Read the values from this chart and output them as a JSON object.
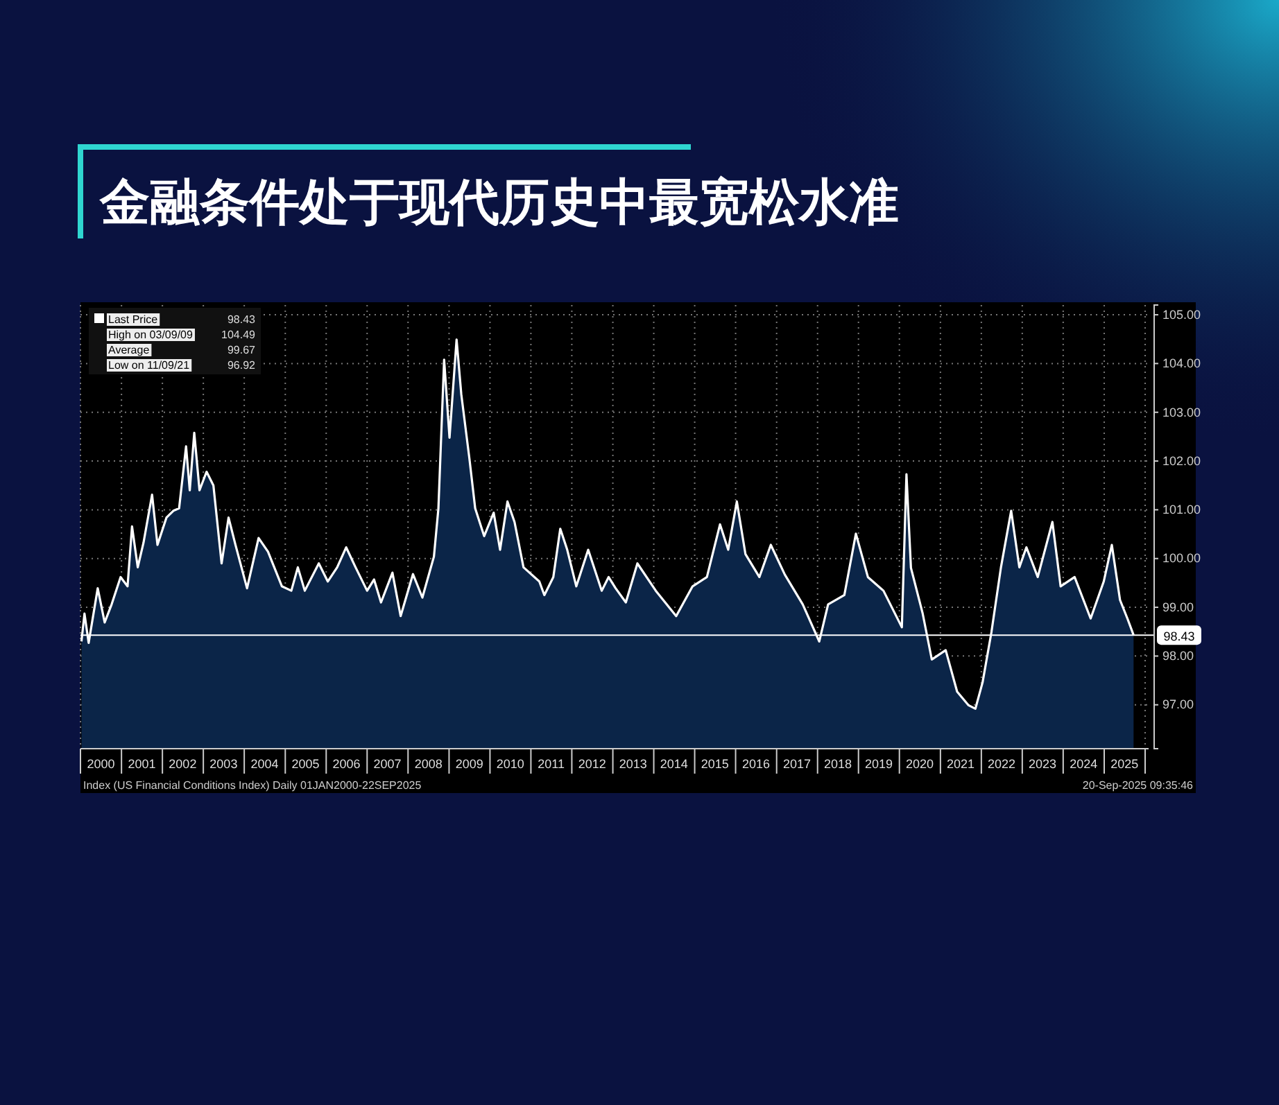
{
  "chart_data": {
    "type": "area",
    "title": "金融条件处于现代历史中最宽松水准",
    "series": [
      {
        "name": "Last Price",
        "color": "#ffffff",
        "x": [
          "2000-01-10",
          "2000-02-06",
          "2000-03-14",
          "2000-06-03",
          "2000-08-04",
          "2000-10-05",
          "2000-12-24",
          "2001-02-24",
          "2001-04-05",
          "2001-05-26",
          "2001-07-16",
          "2001-10-01",
          "2001-11-18",
          "2002-02-06",
          "2002-04-09",
          "2002-05-30",
          "2002-07-31",
          "2002-09-02",
          "2002-10-12",
          "2002-11-28",
          "2003-01-30",
          "2003-04-01",
          "2003-06-13",
          "2003-08-14",
          "2003-10-15",
          "2004-01-26",
          "2004-05-08",
          "2004-07-31",
          "2004-12-02",
          "2005-02-24",
          "2005-04-23",
          "2005-06-24",
          "2005-10-27",
          "2006-01-15",
          "2006-04-09",
          "2006-06-28",
          "2006-09-20",
          "2007-01-01",
          "2007-03-04",
          "2007-05-05",
          "2007-08-15",
          "2007-10-27",
          "2008-02-14",
          "2008-05-08",
          "2008-08-19",
          "2008-09-28",
          "2008-11-18",
          "2009-01-05",
          "2009-03-09",
          "2009-04-20",
          "2009-07-01",
          "2009-08-22",
          "2009-11-10",
          "2010-02-03",
          "2010-04-01",
          "2010-06-06",
          "2010-08-08",
          "2010-10-27",
          "2011-03-17",
          "2011-05-01",
          "2011-07-20",
          "2011-09-20",
          "2011-11-21",
          "2012-02-10",
          "2012-05-26",
          "2012-09-24",
          "2012-11-24",
          "2013-01-26",
          "2013-04-27",
          "2013-08-08",
          "2014-01-19",
          "2014-07-20",
          "2014-12-13",
          "2015-04-20",
          "2015-08-15",
          "2015-10-27",
          "2016-01-12",
          "2016-03-29",
          "2016-07-31",
          "2016-11-10",
          "2017-03-15",
          "2017-08-22",
          "2018-01-16",
          "2018-04-05",
          "2018-08-28",
          "2018-12-09",
          "2019-03-26",
          "2019-08-12",
          "2020-01-23",
          "2020-03-04",
          "2020-04-13",
          "2020-07-27",
          "2020-10-16",
          "2021-02-17",
          "2021-05-30",
          "2021-09-09",
          "2021-11-09",
          "2022-01-12",
          "2022-04-01",
          "2022-06-25",
          "2022-09-24",
          "2022-12-06",
          "2023-02-07",
          "2023-05-19",
          "2023-09-27",
          "2023-12-09",
          "2024-04-12",
          "2024-09-02",
          "2024-12-28",
          "2025-03-10",
          "2025-05-22",
          "2025-07-27",
          "2025-09-20"
        ],
        "values": [
          98.3,
          98.87,
          98.27,
          99.39,
          98.69,
          99.06,
          99.62,
          99.43,
          100.66,
          99.82,
          100.32,
          101.31,
          100.28,
          100.84,
          100.98,
          101.03,
          102.3,
          101.4,
          102.58,
          101.4,
          101.78,
          101.5,
          99.9,
          100.84,
          100.28,
          99.39,
          100.42,
          100.14,
          99.43,
          99.34,
          99.82,
          99.34,
          99.9,
          99.53,
          99.82,
          100.23,
          99.82,
          99.34,
          99.57,
          99.1,
          99.71,
          98.82,
          99.68,
          99.2,
          100.04,
          101.03,
          104.08,
          102.48,
          104.49,
          103.37,
          102.06,
          101.03,
          100.46,
          100.94,
          100.18,
          101.17,
          100.75,
          99.82,
          99.53,
          99.25,
          99.62,
          100.61,
          100.18,
          99.43,
          100.18,
          99.34,
          99.62,
          99.39,
          99.1,
          99.9,
          99.34,
          98.82,
          99.43,
          99.62,
          100.7,
          100.18,
          101.17,
          100.09,
          99.62,
          100.28,
          99.67,
          99.06,
          98.3,
          99.06,
          99.25,
          100.51,
          99.62,
          99.34,
          98.59,
          101.73,
          99.81,
          98.87,
          97.93,
          98.12,
          97.27,
          96.99,
          96.92,
          97.46,
          98.49,
          99.82,
          100.98,
          99.82,
          100.23,
          99.62,
          100.75,
          99.43,
          99.62,
          98.77,
          99.53,
          100.28,
          99.15,
          98.77,
          98.43
        ]
      }
    ],
    "xlim": [
      "2000-01-01",
      "2026-02-01"
    ],
    "xticks": [
      {
        "value": "2000-01-01",
        "label": null
      },
      {
        "value": "2000-07-01",
        "label": "2000"
      },
      {
        "value": "2001-01-01",
        "label": null
      },
      {
        "value": "2001-07-01",
        "label": "2001"
      },
      {
        "value": "2002-01-01",
        "label": null
      },
      {
        "value": "2002-07-01",
        "label": "2002"
      },
      {
        "value": "2003-01-01",
        "label": null
      },
      {
        "value": "2003-07-01",
        "label": "2003"
      },
      {
        "value": "2004-01-01",
        "label": null
      },
      {
        "value": "2004-07-01",
        "label": "2004"
      },
      {
        "value": "2005-01-01",
        "label": null
      },
      {
        "value": "2005-07-01",
        "label": "2005"
      },
      {
        "value": "2006-01-01",
        "label": null
      },
      {
        "value": "2006-07-01",
        "label": "2006"
      },
      {
        "value": "2007-01-01",
        "label": null
      },
      {
        "value": "2007-07-01",
        "label": "2007"
      },
      {
        "value": "2008-01-01",
        "label": null
      },
      {
        "value": "2008-07-01",
        "label": "2008"
      },
      {
        "value": "2009-01-01",
        "label": null
      },
      {
        "value": "2009-07-01",
        "label": "2009"
      },
      {
        "value": "2010-01-01",
        "label": null
      },
      {
        "value": "2010-07-01",
        "label": "2010"
      },
      {
        "value": "2011-01-01",
        "label": null
      },
      {
        "value": "2011-07-01",
        "label": "2011"
      },
      {
        "value": "2012-01-01",
        "label": null
      },
      {
        "value": "2012-07-01",
        "label": "2012"
      },
      {
        "value": "2013-01-01",
        "label": null
      },
      {
        "value": "2013-07-01",
        "label": "2013"
      },
      {
        "value": "2014-01-01",
        "label": null
      },
      {
        "value": "2014-07-01",
        "label": "2014"
      },
      {
        "value": "2015-01-01",
        "label": null
      },
      {
        "value": "2015-07-01",
        "label": "2015"
      },
      {
        "value": "2016-01-01",
        "label": null
      },
      {
        "value": "2016-07-01",
        "label": "2016"
      },
      {
        "value": "2017-01-01",
        "label": null
      },
      {
        "value": "2017-07-01",
        "label": "2017"
      },
      {
        "value": "2018-01-01",
        "label": null
      },
      {
        "value": "2018-07-01",
        "label": "2018"
      },
      {
        "value": "2019-01-01",
        "label": null
      },
      {
        "value": "2019-07-01",
        "label": "2019"
      },
      {
        "value": "2020-01-01",
        "label": null
      },
      {
        "value": "2020-07-01",
        "label": "2020"
      },
      {
        "value": "2021-01-01",
        "label": null
      },
      {
        "value": "2021-07-01",
        "label": "2021"
      },
      {
        "value": "2022-01-01",
        "label": null
      },
      {
        "value": "2022-07-01",
        "label": "2022"
      },
      {
        "value": "2023-01-01",
        "label": null
      },
      {
        "value": "2023-07-01",
        "label": "2023"
      },
      {
        "value": "2024-01-01",
        "label": null
      },
      {
        "value": "2024-07-01",
        "label": "2024"
      },
      {
        "value": "2025-01-01",
        "label": null
      },
      {
        "value": "2025-07-01",
        "label": "2025"
      },
      {
        "value": "2026-01-01",
        "label": null
      }
    ],
    "ylim": [
      96.1,
      105.2
    ],
    "yticks": [
      {
        "value": 97,
        "label": "97.00"
      },
      {
        "value": 98,
        "label": "98.00"
      },
      {
        "value": 99,
        "label": "99.00"
      },
      {
        "value": 100,
        "label": "100.00"
      },
      {
        "value": 101,
        "label": "101.00"
      },
      {
        "value": 102,
        "label": "102.00"
      },
      {
        "value": 103,
        "label": "103.00"
      },
      {
        "value": 104,
        "label": "104.00"
      },
      {
        "value": 105,
        "label": "105.00"
      }
    ],
    "ref_lines": [
      {
        "axis": "y",
        "value": 98.43,
        "label": "98.43",
        "color": "#ffffff"
      }
    ],
    "grid": true,
    "legend": "top left",
    "annotations": [
      "98.43",
      "High on 03/09/09 104.49",
      "Average 99.67",
      "Low on 11/09/21 96.92",
      "Index (US Financial Conditions Index)  Daily 01JAN2000-22SEP2025",
      "20-Sep-2025 09:35:46"
    ]
  }
}
